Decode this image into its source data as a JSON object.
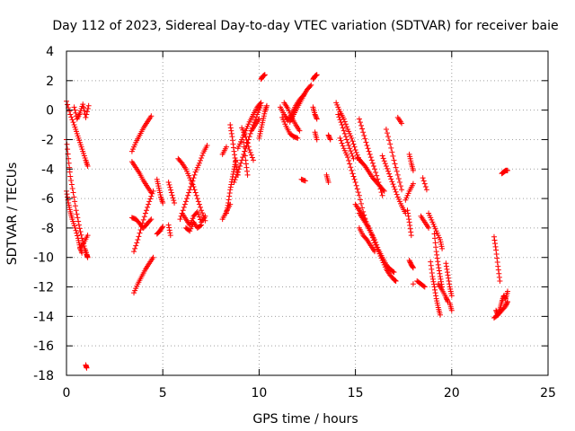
{
  "chart_data": {
    "type": "scatter",
    "title": "Day 112 of 2023, Sidereal Day-to-day VTEC variation (SDTVAR) for receiver baie",
    "xlabel": "GPS time / hours",
    "ylabel": "SDTVAR / TECUs",
    "xlim": [
      0,
      25
    ],
    "ylim": [
      -18,
      4
    ],
    "xticks": [
      0,
      5,
      10,
      15,
      20,
      25
    ],
    "yticks": [
      -18,
      -16,
      -14,
      -12,
      -10,
      -8,
      -6,
      -4,
      -2,
      0,
      2,
      4
    ],
    "grid": true,
    "marker": "+",
    "color": "#ff0000",
    "series": [
      {
        "name": "s01",
        "x": [
          0.0,
          0.2,
          0.4,
          0.55,
          0.7,
          0.85,
          1.0,
          1.1
        ],
        "y": [
          0.6,
          -0.3,
          -1.0,
          -1.6,
          -2.2,
          -2.8,
          -3.4,
          -3.8
        ]
      },
      {
        "name": "s02",
        "x": [
          0.0,
          0.1,
          0.2,
          0.35,
          0.5,
          0.65,
          0.8,
          0.95,
          1.05,
          1.1
        ],
        "y": [
          -2.0,
          -3.3,
          -4.5,
          -5.6,
          -6.8,
          -7.8,
          -8.7,
          -9.4,
          -9.8,
          -10.0
        ]
      },
      {
        "name": "s03",
        "x": [
          0.0,
          0.1,
          0.2,
          0.3,
          0.45,
          0.6,
          0.7,
          0.8
        ],
        "y": [
          -5.5,
          -6.3,
          -6.9,
          -7.4,
          -8.0,
          -8.7,
          -9.3,
          -9.7
        ]
      },
      {
        "name": "s04",
        "x": [
          0.4,
          0.55,
          0.7,
          0.85,
          1.0,
          1.15
        ],
        "y": [
          0.2,
          -0.6,
          -0.2,
          0.4,
          -0.5,
          0.3
        ]
      },
      {
        "name": "s05",
        "x": [
          0.7,
          0.9,
          1.1
        ],
        "y": [
          -9.4,
          -9.0,
          -8.5
        ]
      },
      {
        "name": "s06",
        "x": [
          1.0,
          1.05
        ],
        "y": [
          -17.3,
          -17.5
        ]
      },
      {
        "name": "s07",
        "x": [
          3.4,
          3.6,
          3.8,
          4.0,
          4.2,
          4.4
        ],
        "y": [
          -2.8,
          -2.2,
          -1.7,
          -1.2,
          -0.8,
          -0.4
        ]
      },
      {
        "name": "s08",
        "x": [
          3.4,
          3.6,
          3.8,
          4.0,
          4.2,
          4.4
        ],
        "y": [
          -3.5,
          -3.9,
          -4.3,
          -4.8,
          -5.2,
          -5.6
        ]
      },
      {
        "name": "s09",
        "x": [
          3.5,
          3.7,
          3.9,
          4.1,
          4.3,
          4.5
        ],
        "y": [
          -12.4,
          -11.8,
          -11.3,
          -10.8,
          -10.4,
          -10.0
        ]
      },
      {
        "name": "s10",
        "x": [
          3.5,
          3.7,
          3.9,
          4.1,
          4.3,
          4.5
        ],
        "y": [
          -9.6,
          -8.8,
          -7.9,
          -7.0,
          -6.2,
          -5.5
        ]
      },
      {
        "name": "s11",
        "x": [
          3.4,
          3.6,
          3.8,
          4.0,
          4.2,
          4.4
        ],
        "y": [
          -7.3,
          -7.4,
          -7.7,
          -8.0,
          -7.7,
          -7.4
        ]
      },
      {
        "name": "s12",
        "x": [
          4.7,
          4.8,
          4.9,
          5.0
        ],
        "y": [
          -4.7,
          -5.3,
          -5.9,
          -6.3
        ]
      },
      {
        "name": "s13",
        "x": [
          4.7,
          4.85,
          5.0
        ],
        "y": [
          -8.4,
          -8.2,
          -7.9
        ]
      },
      {
        "name": "s14",
        "x": [
          5.3,
          5.45,
          5.6
        ],
        "y": [
          -4.9,
          -5.6,
          -6.3
        ]
      },
      {
        "name": "s15",
        "x": [
          5.3,
          5.4
        ],
        "y": [
          -7.8,
          -8.5
        ]
      },
      {
        "name": "s16",
        "x": [
          5.8,
          6.0,
          6.2,
          6.4,
          6.6,
          6.8,
          7.0,
          7.2
        ],
        "y": [
          -3.3,
          -3.6,
          -4.0,
          -4.6,
          -5.2,
          -6.0,
          -6.8,
          -7.5
        ]
      },
      {
        "name": "s17",
        "x": [
          5.9,
          6.1,
          6.3,
          6.5,
          6.7,
          6.9,
          7.1,
          7.3
        ],
        "y": [
          -7.4,
          -6.6,
          -5.8,
          -5.0,
          -4.2,
          -3.6,
          -2.9,
          -2.4
        ]
      },
      {
        "name": "s18",
        "x": [
          6.0,
          6.2,
          6.4,
          6.6,
          6.8,
          7.0,
          7.2
        ],
        "y": [
          -7.0,
          -7.4,
          -7.8,
          -7.2,
          -6.9,
          -7.6,
          -7.2
        ]
      },
      {
        "name": "s19",
        "x": [
          6.2,
          6.4,
          6.6,
          6.8,
          7.0
        ],
        "y": [
          -8.0,
          -8.2,
          -7.6,
          -8.0,
          -7.8
        ]
      },
      {
        "name": "s20",
        "x": [
          8.1,
          8.3
        ],
        "y": [
          -3.0,
          -2.5
        ]
      },
      {
        "name": "s21",
        "x": [
          8.1,
          8.3,
          8.5
        ],
        "y": [
          -7.4,
          -6.9,
          -6.4
        ]
      },
      {
        "name": "s22",
        "x": [
          8.3,
          8.4,
          8.5,
          8.6,
          8.7,
          8.8
        ],
        "y": [
          -7.0,
          -6.3,
          -5.4,
          -4.7,
          -4.0,
          -3.4
        ]
      },
      {
        "name": "s23",
        "x": [
          8.5,
          8.6,
          8.7,
          8.8,
          8.9
        ],
        "y": [
          -1.0,
          -1.8,
          -2.8,
          -3.7,
          -4.4
        ]
      },
      {
        "name": "s24",
        "x": [
          8.7,
          8.9,
          9.1,
          9.3,
          9.5,
          9.7,
          9.9,
          10.1
        ],
        "y": [
          -4.9,
          -4.2,
          -3.4,
          -2.6,
          -1.8,
          -1.0,
          -0.3,
          0.3
        ]
      },
      {
        "name": "s25",
        "x": [
          8.9,
          9.1,
          9.3,
          9.5,
          9.7,
          9.9,
          10.1
        ],
        "y": [
          -2.6,
          -2.0,
          -1.4,
          -0.8,
          -0.3,
          0.2,
          0.5
        ]
      },
      {
        "name": "s26",
        "x": [
          9.1,
          9.3,
          9.5,
          9.7
        ],
        "y": [
          -1.2,
          -1.8,
          -2.7,
          -3.4
        ]
      },
      {
        "name": "s27",
        "x": [
          9.2,
          9.3,
          9.4
        ],
        "y": [
          -2.2,
          -3.4,
          -4.4
        ]
      },
      {
        "name": "s28",
        "x": [
          9.6,
          9.8,
          10.0
        ],
        "y": [
          -1.4,
          -1.0,
          -0.6
        ]
      },
      {
        "name": "s29",
        "x": [
          10.0,
          10.1,
          10.2,
          10.3,
          10.4
        ],
        "y": [
          -1.9,
          -1.3,
          -0.7,
          -0.1,
          0.3
        ]
      },
      {
        "name": "s30",
        "x": [
          10.1,
          10.2,
          10.3
        ],
        "y": [
          2.1,
          2.3,
          2.4
        ]
      },
      {
        "name": "s31",
        "x": [
          11.1,
          11.3,
          11.5,
          11.7,
          11.9,
          12.1,
          12.3,
          12.5,
          12.7
        ],
        "y": [
          0.2,
          -0.3,
          -0.7,
          -0.2,
          0.3,
          0.7,
          1.0,
          1.4,
          1.7
        ]
      },
      {
        "name": "s32",
        "x": [
          11.2,
          11.4,
          11.6,
          11.8,
          12.0
        ],
        "y": [
          -0.5,
          -1.1,
          -1.6,
          -1.8,
          -1.9
        ]
      },
      {
        "name": "s33",
        "x": [
          11.3,
          11.5,
          11.7,
          11.9,
          12.1
        ],
        "y": [
          0.5,
          0.1,
          -0.5,
          -1.0,
          -1.4
        ]
      },
      {
        "name": "s34",
        "x": [
          11.6,
          11.8,
          12.0,
          12.2,
          12.4
        ],
        "y": [
          -0.8,
          -0.3,
          0.2,
          0.7,
          1.2
        ]
      },
      {
        "name": "s35",
        "x": [
          12.2,
          12.4
        ],
        "y": [
          -4.7,
          -4.8
        ]
      },
      {
        "name": "s36",
        "x": [
          12.8,
          12.9,
          13.0
        ],
        "y": [
          0.2,
          -0.3,
          -0.6
        ]
      },
      {
        "name": "s37",
        "x": [
          12.8,
          12.9,
          13.0
        ],
        "y": [
          2.1,
          2.3,
          2.4
        ]
      },
      {
        "name": "s38",
        "x": [
          12.9,
          13.0
        ],
        "y": [
          -1.5,
          -2.0
        ]
      },
      {
        "name": "s39",
        "x": [
          13.5,
          13.6
        ],
        "y": [
          -4.4,
          -4.9
        ]
      },
      {
        "name": "s40",
        "x": [
          13.6,
          13.7
        ],
        "y": [
          -1.7,
          -2.0
        ]
      },
      {
        "name": "s41",
        "x": [
          14.0,
          14.2,
          14.4,
          14.6,
          14.8,
          15.0,
          15.2
        ],
        "y": [
          0.5,
          -0.1,
          -0.6,
          -1.3,
          -1.9,
          -2.7,
          -3.4
        ]
      },
      {
        "name": "s42",
        "x": [
          14.1,
          14.3,
          14.5,
          14.7,
          14.9
        ],
        "y": [
          -0.3,
          -1.0,
          -1.8,
          -2.6,
          -3.3
        ]
      },
      {
        "name": "s43",
        "x": [
          14.2,
          14.4,
          14.6,
          14.8,
          15.0,
          15.2,
          15.4,
          15.6
        ],
        "y": [
          -1.9,
          -2.6,
          -3.2,
          -4.1,
          -4.9,
          -5.8,
          -6.9,
          -7.8
        ]
      },
      {
        "name": "s44",
        "x": [
          15.0,
          15.2,
          15.4,
          15.6,
          15.8,
          16.0,
          16.2,
          16.4,
          16.6,
          16.8,
          17.0,
          17.1
        ],
        "y": [
          -6.4,
          -6.8,
          -7.2,
          -7.7,
          -8.3,
          -9.0,
          -9.6,
          -10.2,
          -10.8,
          -11.2,
          -11.5,
          -11.6
        ]
      },
      {
        "name": "s45",
        "x": [
          15.2,
          15.4,
          15.6,
          15.8,
          16.0,
          16.2,
          16.4,
          16.6,
          16.8,
          17.0
        ],
        "y": [
          -7.0,
          -7.4,
          -7.8,
          -8.3,
          -8.8,
          -9.5,
          -10.0,
          -10.5,
          -10.8,
          -11.0
        ]
      },
      {
        "name": "s46",
        "x": [
          15.2,
          15.4,
          15.6,
          15.8,
          16.0
        ],
        "y": [
          -8.0,
          -8.5,
          -8.8,
          -9.2,
          -9.6
        ]
      },
      {
        "name": "s47",
        "x": [
          15.1,
          15.3,
          15.5,
          15.7,
          15.9,
          16.1,
          16.3,
          16.5
        ],
        "y": [
          -3.2,
          -3.5,
          -3.8,
          -4.2,
          -4.6,
          -4.9,
          -5.2,
          -5.5
        ]
      },
      {
        "name": "s48",
        "x": [
          15.2,
          15.4,
          15.6,
          15.8,
          16.0,
          16.2,
          16.4
        ],
        "y": [
          -0.6,
          -1.5,
          -2.4,
          -3.2,
          -4.0,
          -4.9,
          -5.8
        ]
      },
      {
        "name": "s49",
        "x": [
          16.4,
          16.6,
          16.8,
          17.0,
          17.2,
          17.4,
          17.6
        ],
        "y": [
          -3.1,
          -3.8,
          -4.5,
          -5.2,
          -5.9,
          -6.5,
          -7.0
        ]
      },
      {
        "name": "s50",
        "x": [
          16.6,
          16.8,
          17.0,
          17.2,
          17.4
        ],
        "y": [
          -1.3,
          -2.3,
          -3.4,
          -4.4,
          -5.4
        ]
      },
      {
        "name": "s51",
        "x": [
          17.2,
          17.4
        ],
        "y": [
          -0.5,
          -0.9
        ]
      },
      {
        "name": "s52",
        "x": [
          17.6,
          17.8,
          18.0
        ],
        "y": [
          -6.1,
          -5.5,
          -5.0
        ]
      },
      {
        "name": "s53",
        "x": [
          17.7,
          17.8,
          17.9
        ],
        "y": [
          -6.8,
          -7.6,
          -8.5
        ]
      },
      {
        "name": "s54",
        "x": [
          17.8,
          17.9,
          18.0
        ],
        "y": [
          -3.0,
          -3.6,
          -4.1
        ]
      },
      {
        "name": "s55",
        "x": [
          17.8,
          17.9,
          18.0
        ],
        "y": [
          -10.2,
          -10.5,
          -10.7
        ]
      },
      {
        "name": "s56",
        "x": [
          18.0
        ],
        "y": [
          -11.8
        ]
      },
      {
        "name": "s57",
        "x": [
          18.2,
          18.4,
          18.6
        ],
        "y": [
          -11.6,
          -11.8,
          -12.0
        ]
      },
      {
        "name": "s58",
        "x": [
          18.4,
          18.6,
          18.8
        ],
        "y": [
          -7.2,
          -7.6,
          -8.0
        ]
      },
      {
        "name": "s59",
        "x": [
          18.5,
          18.7
        ],
        "y": [
          -4.6,
          -5.4
        ]
      },
      {
        "name": "s60",
        "x": [
          18.8,
          19.0,
          19.2,
          19.4,
          19.5
        ],
        "y": [
          -7.0,
          -7.6,
          -8.2,
          -8.8,
          -9.4
        ]
      },
      {
        "name": "s61",
        "x": [
          18.9,
          19.0,
          19.1,
          19.2,
          19.3,
          19.4
        ],
        "y": [
          -10.3,
          -11.3,
          -12.0,
          -12.8,
          -13.4,
          -13.9
        ]
      },
      {
        "name": "s62",
        "x": [
          19.1,
          19.2,
          19.3,
          19.4,
          19.5
        ],
        "y": [
          -8.4,
          -9.6,
          -10.5,
          -11.3,
          -12.0
        ]
      },
      {
        "name": "s63",
        "x": [
          19.3,
          19.5,
          19.7,
          19.8
        ],
        "y": [
          -11.8,
          -12.2,
          -12.7,
          -13.0
        ]
      },
      {
        "name": "s64",
        "x": [
          19.7,
          19.8,
          19.9,
          20.0
        ],
        "y": [
          -10.4,
          -11.2,
          -12.0,
          -12.6
        ]
      },
      {
        "name": "s65",
        "x": [
          19.9,
          20.0
        ],
        "y": [
          -13.1,
          -13.6
        ]
      },
      {
        "name": "s66",
        "x": [
          22.2,
          22.3,
          22.4,
          22.5
        ],
        "y": [
          -8.6,
          -9.5,
          -10.6,
          -11.6
        ]
      },
      {
        "name": "s67",
        "x": [
          22.3,
          22.4,
          22.5,
          22.6,
          22.7,
          22.8,
          22.9
        ],
        "y": [
          -13.6,
          -13.9,
          -13.5,
          -13.0,
          -12.6,
          -12.8,
          -12.3
        ]
      },
      {
        "name": "s68",
        "x": [
          22.2,
          22.4,
          22.6,
          22.8,
          22.9
        ],
        "y": [
          -14.1,
          -13.9,
          -13.6,
          -13.3,
          -13.0
        ]
      },
      {
        "name": "s69",
        "x": [
          22.6,
          22.7,
          22.8,
          22.9
        ],
        "y": [
          -4.3,
          -4.2,
          -4.1,
          -4.1
        ]
      }
    ]
  }
}
